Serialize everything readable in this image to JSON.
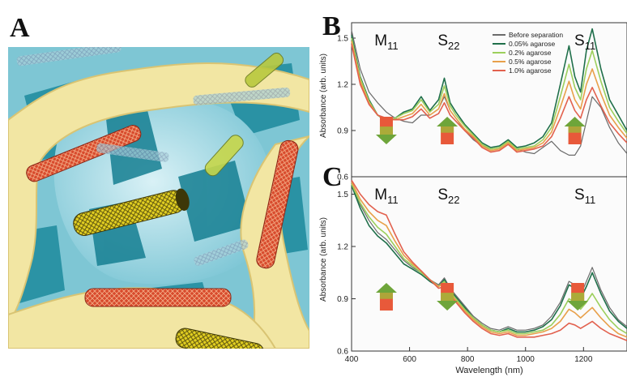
{
  "figure": {
    "panel_a_label": "A",
    "panel_b_label": "B",
    "panel_c_label": "C"
  },
  "chart_data": [
    {
      "type": "line",
      "panel": "B",
      "xlabel": "",
      "ylabel": "Absorbance (arb. units)",
      "xlim": [
        400,
        1350
      ],
      "ylim": [
        0.6,
        1.6
      ],
      "yticks": [
        "0.6",
        "0.9",
        "1.2",
        "1.5"
      ],
      "band_labels": [
        {
          "label": "M11",
          "base": "M",
          "sub": "11",
          "x": 520
        },
        {
          "label": "S22",
          "base": "S",
          "sub": "22",
          "x": 735
        },
        {
          "label": "S11",
          "base": "S",
          "sub": "11",
          "x": 1205
        }
      ],
      "arrows": [
        {
          "x": 520,
          "direction": "down"
        },
        {
          "x": 730,
          "direction": "up"
        },
        {
          "x": 1170,
          "direction": "up"
        }
      ],
      "legend": {
        "position": "top-right"
      },
      "series": [
        {
          "name": "Before separation",
          "color": "#6b6b6b",
          "x": [
            400,
            430,
            460,
            490,
            520,
            550,
            580,
            610,
            640,
            670,
            700,
            720,
            740,
            760,
            790,
            820,
            850,
            880,
            910,
            940,
            970,
            1000,
            1030,
            1060,
            1090,
            1120,
            1150,
            1170,
            1190,
            1210,
            1230,
            1260,
            1290,
            1320,
            1350
          ],
          "y": [
            1.55,
            1.3,
            1.15,
            1.08,
            1.02,
            0.98,
            0.96,
            0.95,
            1.0,
            1.0,
            1.04,
            1.12,
            1.03,
            0.98,
            0.9,
            0.84,
            0.8,
            0.78,
            0.79,
            0.83,
            0.78,
            0.76,
            0.75,
            0.79,
            0.83,
            0.77,
            0.74,
            0.74,
            0.8,
            0.96,
            1.12,
            1.05,
            0.92,
            0.82,
            0.75
          ]
        },
        {
          "name": "0.05% agarose",
          "color": "#1f6f4a",
          "x": [
            400,
            430,
            460,
            490,
            520,
            550,
            580,
            610,
            640,
            670,
            700,
            720,
            740,
            760,
            790,
            820,
            850,
            880,
            910,
            940,
            970,
            1000,
            1030,
            1060,
            1090,
            1120,
            1150,
            1170,
            1190,
            1210,
            1230,
            1260,
            1290,
            1320,
            1350
          ],
          "y": [
            1.52,
            1.25,
            1.1,
            1.0,
            0.96,
            0.98,
            1.02,
            1.04,
            1.12,
            1.03,
            1.1,
            1.24,
            1.08,
            1.02,
            0.94,
            0.88,
            0.82,
            0.79,
            0.8,
            0.84,
            0.79,
            0.8,
            0.82,
            0.86,
            0.95,
            1.2,
            1.45,
            1.25,
            1.15,
            1.42,
            1.56,
            1.3,
            1.1,
            1.0,
            0.9
          ]
        },
        {
          "name": "0.2% agarose",
          "color": "#9ccf5c",
          "x": [
            400,
            430,
            460,
            490,
            520,
            550,
            580,
            610,
            640,
            670,
            700,
            720,
            740,
            760,
            790,
            820,
            850,
            880,
            910,
            940,
            970,
            1000,
            1030,
            1060,
            1090,
            1120,
            1150,
            1170,
            1190,
            1210,
            1230,
            1260,
            1290,
            1320,
            1350
          ],
          "y": [
            1.5,
            1.24,
            1.09,
            1.0,
            0.97,
            0.98,
            1.01,
            1.03,
            1.1,
            1.02,
            1.07,
            1.19,
            1.06,
            1.0,
            0.93,
            0.87,
            0.81,
            0.78,
            0.79,
            0.83,
            0.78,
            0.79,
            0.8,
            0.84,
            0.92,
            1.12,
            1.33,
            1.18,
            1.1,
            1.3,
            1.42,
            1.22,
            1.05,
            0.96,
            0.88
          ]
        },
        {
          "name": "0.5% agarose",
          "color": "#e8a04a",
          "x": [
            400,
            430,
            460,
            490,
            520,
            550,
            580,
            610,
            640,
            670,
            700,
            720,
            740,
            760,
            790,
            820,
            850,
            880,
            910,
            940,
            970,
            1000,
            1030,
            1060,
            1090,
            1120,
            1150,
            1170,
            1190,
            1210,
            1230,
            1260,
            1290,
            1320,
            1350
          ],
          "y": [
            1.48,
            1.22,
            1.08,
            1.0,
            0.97,
            0.97,
            0.99,
            1.01,
            1.07,
            1.0,
            1.04,
            1.14,
            1.03,
            0.98,
            0.91,
            0.86,
            0.8,
            0.77,
            0.78,
            0.82,
            0.77,
            0.78,
            0.79,
            0.82,
            0.89,
            1.05,
            1.22,
            1.1,
            1.04,
            1.2,
            1.3,
            1.14,
            1.0,
            0.92,
            0.85
          ]
        },
        {
          "name": "1.0% agarose",
          "color": "#e2614e",
          "x": [
            400,
            430,
            460,
            490,
            520,
            550,
            580,
            610,
            640,
            670,
            700,
            720,
            740,
            760,
            790,
            820,
            850,
            880,
            910,
            940,
            970,
            1000,
            1030,
            1060,
            1090,
            1120,
            1150,
            1170,
            1190,
            1210,
            1230,
            1260,
            1290,
            1320,
            1350
          ],
          "y": [
            1.46,
            1.2,
            1.07,
            1.0,
            0.98,
            0.97,
            0.97,
            0.99,
            1.04,
            0.98,
            1.01,
            1.08,
            1.0,
            0.96,
            0.9,
            0.85,
            0.79,
            0.76,
            0.77,
            0.81,
            0.76,
            0.77,
            0.78,
            0.8,
            0.86,
            0.98,
            1.12,
            1.03,
            0.98,
            1.1,
            1.18,
            1.06,
            0.95,
            0.88,
            0.82
          ]
        }
      ]
    },
    {
      "type": "line",
      "panel": "C",
      "xlabel": "Wavelength (nm)",
      "ylabel": "Absorbance (arb. units)",
      "xlim": [
        400,
        1350
      ],
      "ylim": [
        0.6,
        1.6
      ],
      "xticks": [
        "400",
        "600",
        "800",
        "1000",
        "1200"
      ],
      "yticks": [
        "0.6",
        "0.9",
        "1.2",
        "1.5"
      ],
      "band_labels": [
        {
          "label": "M11",
          "base": "M",
          "sub": "11",
          "x": 520
        },
        {
          "label": "S22",
          "base": "S",
          "sub": "22",
          "x": 735
        },
        {
          "label": "S11",
          "base": "S",
          "sub": "11",
          "x": 1205
        }
      ],
      "arrows": [
        {
          "x": 520,
          "direction": "up"
        },
        {
          "x": 730,
          "direction": "down"
        },
        {
          "x": 1180,
          "direction": "down"
        }
      ],
      "series": [
        {
          "name": "Before separation",
          "color": "#6b6b6b",
          "x": [
            400,
            430,
            460,
            490,
            520,
            550,
            580,
            610,
            640,
            670,
            700,
            720,
            740,
            760,
            790,
            820,
            850,
            880,
            910,
            940,
            970,
            1000,
            1030,
            1060,
            1090,
            1120,
            1150,
            1170,
            1190,
            1210,
            1230,
            1260,
            1290,
            1320,
            1350
          ],
          "y": [
            1.55,
            1.44,
            1.35,
            1.28,
            1.24,
            1.18,
            1.12,
            1.08,
            1.05,
            1.01,
            0.98,
            1.02,
            0.96,
            0.92,
            0.86,
            0.8,
            0.76,
            0.73,
            0.72,
            0.74,
            0.72,
            0.72,
            0.73,
            0.75,
            0.8,
            0.88,
            1.0,
            0.98,
            0.92,
            1.0,
            1.08,
            0.95,
            0.85,
            0.78,
            0.74
          ]
        },
        {
          "name": "0.05% agarose",
          "color": "#1f6f4a",
          "x": [
            400,
            430,
            460,
            490,
            520,
            550,
            580,
            610,
            640,
            670,
            700,
            720,
            740,
            760,
            790,
            820,
            850,
            880,
            910,
            940,
            970,
            1000,
            1030,
            1060,
            1090,
            1120,
            1150,
            1170,
            1190,
            1210,
            1230,
            1260,
            1290,
            1320,
            1350
          ],
          "y": [
            1.55,
            1.42,
            1.32,
            1.26,
            1.22,
            1.16,
            1.1,
            1.07,
            1.04,
            1.0,
            0.97,
            1.01,
            0.95,
            0.91,
            0.85,
            0.79,
            0.75,
            0.72,
            0.71,
            0.73,
            0.71,
            0.71,
            0.72,
            0.74,
            0.78,
            0.86,
            0.98,
            0.96,
            0.9,
            0.97,
            1.05,
            0.93,
            0.83,
            0.77,
            0.73
          ]
        },
        {
          "name": "0.2% agarose",
          "color": "#9ccf5c",
          "x": [
            400,
            430,
            460,
            490,
            520,
            550,
            580,
            610,
            640,
            670,
            700,
            720,
            740,
            760,
            790,
            820,
            850,
            880,
            910,
            940,
            970,
            1000,
            1030,
            1060,
            1090,
            1120,
            1150,
            1170,
            1190,
            1210,
            1230,
            1260,
            1290,
            1320,
            1350
          ],
          "y": [
            1.56,
            1.45,
            1.37,
            1.31,
            1.27,
            1.2,
            1.13,
            1.09,
            1.05,
            1.01,
            0.97,
            1.0,
            0.94,
            0.9,
            0.84,
            0.79,
            0.75,
            0.72,
            0.71,
            0.72,
            0.7,
            0.7,
            0.71,
            0.72,
            0.75,
            0.81,
            0.9,
            0.88,
            0.84,
            0.88,
            0.93,
            0.85,
            0.78,
            0.73,
            0.7
          ]
        },
        {
          "name": "0.5% agarose",
          "color": "#e8a04a",
          "x": [
            400,
            430,
            460,
            490,
            520,
            550,
            580,
            610,
            640,
            670,
            700,
            720,
            740,
            760,
            790,
            820,
            850,
            880,
            910,
            940,
            970,
            1000,
            1030,
            1060,
            1090,
            1120,
            1150,
            1170,
            1190,
            1210,
            1230,
            1260,
            1290,
            1320,
            1350
          ],
          "y": [
            1.57,
            1.47,
            1.4,
            1.35,
            1.32,
            1.23,
            1.15,
            1.1,
            1.06,
            1.01,
            0.97,
            0.99,
            0.93,
            0.89,
            0.83,
            0.78,
            0.74,
            0.71,
            0.7,
            0.71,
            0.69,
            0.69,
            0.7,
            0.71,
            0.73,
            0.77,
            0.84,
            0.82,
            0.79,
            0.82,
            0.85,
            0.79,
            0.74,
            0.7,
            0.68
          ]
        },
        {
          "name": "1.0% agarose",
          "color": "#e2614e",
          "x": [
            400,
            430,
            460,
            490,
            520,
            550,
            580,
            610,
            640,
            670,
            700,
            720,
            740,
            760,
            790,
            820,
            850,
            880,
            910,
            940,
            970,
            1000,
            1030,
            1060,
            1090,
            1120,
            1150,
            1170,
            1190,
            1210,
            1230,
            1260,
            1290,
            1320,
            1350
          ],
          "y": [
            1.58,
            1.5,
            1.44,
            1.4,
            1.38,
            1.27,
            1.17,
            1.11,
            1.06,
            1.01,
            0.96,
            0.97,
            0.92,
            0.88,
            0.82,
            0.77,
            0.73,
            0.7,
            0.69,
            0.7,
            0.68,
            0.68,
            0.68,
            0.69,
            0.7,
            0.72,
            0.76,
            0.75,
            0.73,
            0.75,
            0.77,
            0.73,
            0.7,
            0.68,
            0.66
          ]
        }
      ]
    }
  ]
}
